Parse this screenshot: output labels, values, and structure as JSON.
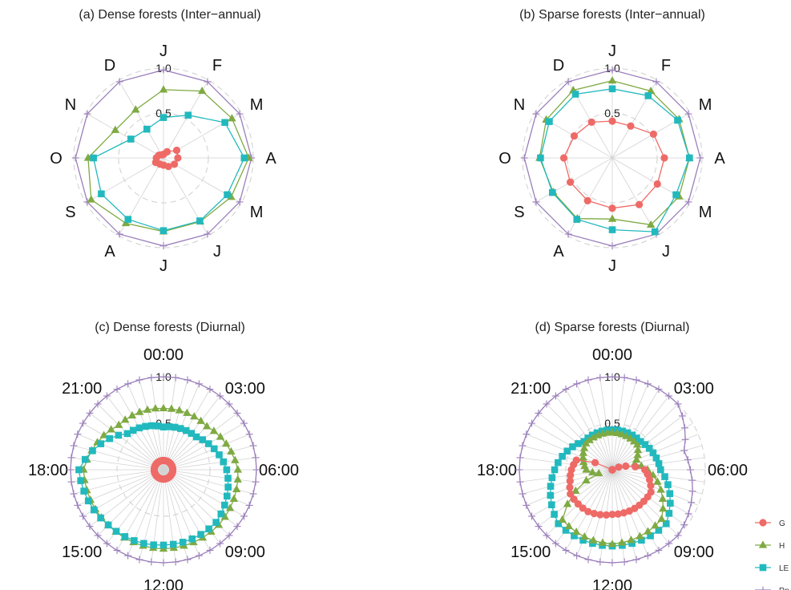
{
  "colors": {
    "G": "#EE6A67",
    "H": "#7FAA43",
    "LE": "#22B9BE",
    "Rn": "#9B7FBB",
    "grid": "#D3D3D3",
    "grid_dash": "#CFCFCF"
  },
  "legend": [
    {
      "key": "G",
      "label": "G",
      "marker": "circle"
    },
    {
      "key": "H",
      "label": "H",
      "marker": "triangle"
    },
    {
      "key": "LE",
      "label": "LE",
      "marker": "square"
    },
    {
      "key": "Rn",
      "label": "Rn",
      "marker": "plus"
    }
  ],
  "chart_data": [
    {
      "id": "a",
      "type": "radar",
      "title": "(a) Dense forests (Inter−annual)",
      "directions": [
        "J",
        "F",
        "M",
        "A",
        "M",
        "J",
        "J",
        "A",
        "S",
        "O",
        "N",
        "D"
      ],
      "rings": [
        0.5,
        1.0
      ],
      "tick_labels": [
        "0.5",
        "1.0"
      ],
      "rmax": 1.0,
      "series": [
        {
          "key": "Rn",
          "values": [
            0.98,
            0.98,
            0.98,
            0.98,
            0.98,
            0.98,
            0.98,
            0.98,
            0.98,
            0.98,
            0.98,
            0.98
          ]
        },
        {
          "key": "H",
          "values": [
            0.76,
            0.86,
            0.88,
            0.95,
            0.87,
            0.82,
            0.82,
            0.84,
            0.93,
            0.84,
            0.62,
            0.62
          ]
        },
        {
          "key": "LE",
          "values": [
            0.45,
            0.55,
            0.79,
            0.9,
            0.82,
            0.81,
            0.81,
            0.79,
            0.8,
            0.78,
            0.42,
            0.37
          ]
        },
        {
          "key": "G",
          "values": [
            0.04,
            0.08,
            0.17,
            0.16,
            0.14,
            0.11,
            0.08,
            0.08,
            0.1,
            0.08,
            0.06,
            0.04
          ]
        }
      ]
    },
    {
      "id": "b",
      "type": "radar",
      "title": "(b) Sparse forests (Inter−annual)",
      "directions": [
        "J",
        "F",
        "M",
        "A",
        "M",
        "J",
        "J",
        "A",
        "S",
        "O",
        "N",
        "D"
      ],
      "rings": [
        0.5,
        1.0
      ],
      "tick_labels": [
        "0.5",
        "1.0"
      ],
      "rmax": 1.0,
      "series": [
        {
          "key": "Rn",
          "values": [
            0.98,
            0.98,
            0.98,
            0.98,
            0.98,
            0.98,
            0.98,
            0.98,
            0.98,
            0.98,
            0.98,
            0.98
          ]
        },
        {
          "key": "H",
          "values": [
            0.86,
            0.86,
            0.86,
            0.86,
            0.86,
            0.86,
            0.68,
            0.78,
            0.76,
            0.81,
            0.85,
            0.87
          ]
        },
        {
          "key": "LE",
          "values": [
            0.77,
            0.8,
            0.84,
            0.86,
            0.82,
            0.95,
            0.8,
            0.79,
            0.77,
            0.8,
            0.81,
            0.82
          ]
        },
        {
          "key": "G",
          "values": [
            0.41,
            0.41,
            0.53,
            0.58,
            0.58,
            0.6,
            0.56,
            0.55,
            0.54,
            0.54,
            0.49,
            0.46
          ]
        }
      ]
    },
    {
      "id": "c",
      "type": "radar",
      "title": "(c) Dense forests (Diurnal)",
      "directions": [
        "00:00",
        "03:00",
        "06:00",
        "09:00",
        "12:00",
        "15:00",
        "18:00",
        "21:00"
      ],
      "rings": [
        0.5,
        1.0
      ],
      "tick_labels": [
        "0.5",
        "1.0"
      ],
      "rmax": 1.0,
      "points_per_series": 48,
      "series": [
        {
          "key": "Rn",
          "anchors": [
            [
              0,
              1.0
            ],
            [
              3,
              1.0
            ],
            [
              6,
              1.0
            ],
            [
              9,
              1.0
            ],
            [
              12,
              1.0
            ],
            [
              15,
              1.0
            ],
            [
              18,
              1.0
            ],
            [
              21,
              1.0
            ],
            [
              24,
              1.0
            ]
          ]
        },
        {
          "key": "H",
          "anchors": [
            [
              0,
              0.66
            ],
            [
              3,
              0.66
            ],
            [
              6,
              0.8
            ],
            [
              9,
              0.84
            ],
            [
              12,
              0.85
            ],
            [
              15,
              0.84
            ],
            [
              18,
              0.86
            ],
            [
              21,
              0.68
            ],
            [
              24,
              0.66
            ]
          ]
        },
        {
          "key": "LE",
          "anchors": [
            [
              0,
              0.46
            ],
            [
              3,
              0.5
            ],
            [
              6,
              0.68
            ],
            [
              9,
              0.8
            ],
            [
              12,
              0.81
            ],
            [
              15,
              0.84
            ],
            [
              18,
              0.91
            ],
            [
              21,
              0.55
            ],
            [
              24,
              0.46
            ]
          ]
        },
        {
          "key": "G",
          "anchors": [
            [
              0,
              0.1
            ],
            [
              6,
              0.1
            ],
            [
              12,
              0.1
            ],
            [
              18,
              0.1
            ],
            [
              24,
              0.1
            ]
          ]
        }
      ]
    },
    {
      "id": "d",
      "type": "radar",
      "title": "(d) Sparse forests (Diurnal)",
      "directions": [
        "00:00",
        "03:00",
        "06:00",
        "09:00",
        "12:00",
        "15:00",
        "18:00",
        "21:00"
      ],
      "rings": [
        0.5,
        1.0
      ],
      "tick_labels": [
        "0.5",
        "1.0"
      ],
      "rmax": 1.0,
      "points_per_series": 48,
      "series": [
        {
          "key": "Rn",
          "anchors": [
            [
              0,
              1.0
            ],
            [
              3,
              1.0
            ],
            [
              5,
              0.8
            ],
            [
              6,
              0.84
            ],
            [
              9,
              1.0
            ],
            [
              12,
              1.0
            ],
            [
              15,
              1.0
            ],
            [
              18,
              1.0
            ],
            [
              21,
              1.0
            ],
            [
              24,
              1.0
            ]
          ]
        },
        {
          "key": "LE",
          "anchors": [
            [
              0,
              0.43
            ],
            [
              3,
              0.43
            ],
            [
              6,
              0.52
            ],
            [
              9,
              0.82
            ],
            [
              12,
              0.82
            ],
            [
              15,
              0.82
            ],
            [
              18,
              0.62
            ],
            [
              21,
              0.43
            ],
            [
              24,
              0.43
            ]
          ]
        },
        {
          "key": "H",
          "anchors": [
            [
              0,
              0.4
            ],
            [
              3,
              0.38
            ],
            [
              5,
              0.25
            ],
            [
              6,
              0.38
            ],
            [
              9,
              0.75
            ],
            [
              12,
              0.8
            ],
            [
              15,
              0.76
            ],
            [
              17,
              0.15
            ],
            [
              18,
              0.28
            ],
            [
              21,
              0.4
            ],
            [
              24,
              0.4
            ]
          ]
        },
        {
          "key": "G",
          "anchors": [
            [
              0,
              0.0
            ],
            [
              4,
              0.0
            ],
            [
              5,
              0.15
            ],
            [
              6,
              0.35
            ],
            [
              8,
              0.48
            ],
            [
              10,
              0.48
            ],
            [
              12,
              0.48
            ],
            [
              14,
              0.52
            ],
            [
              16,
              0.52
            ],
            [
              17,
              0.47
            ],
            [
              18,
              0.44
            ],
            [
              19,
              0.4
            ],
            [
              20,
              0.0
            ],
            [
              24,
              0.0
            ]
          ]
        }
      ]
    }
  ]
}
